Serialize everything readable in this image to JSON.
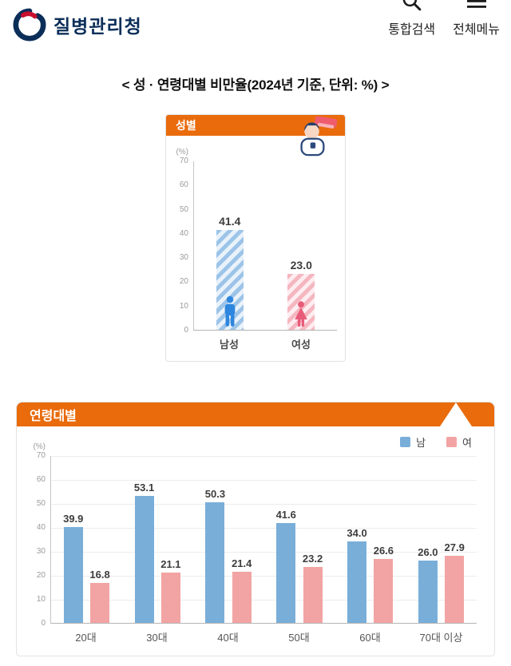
{
  "header": {
    "logo_text": "질병관리청",
    "search_label": "통합검색",
    "menu_label": "전체메뉴"
  },
  "title": "< 성 · 연령대별 비만율(2024년 기준, 단위: %) >",
  "theme": {
    "accent_color": "#E96B0C"
  },
  "chart_data": [
    {
      "type": "bar",
      "title": "성별",
      "unit": "(%)",
      "categories": [
        "남성",
        "여성"
      ],
      "values": [
        41.4,
        23.0
      ],
      "ylim": [
        0,
        70
      ],
      "yticks": [
        0,
        10,
        20,
        30,
        40,
        50,
        60,
        70
      ],
      "bar_styles": [
        "striped-blue",
        "striped-pink"
      ],
      "icons": [
        "male",
        "female"
      ],
      "grid": false,
      "legend_position": "none"
    },
    {
      "type": "bar",
      "title": "연령대별",
      "unit": "(%)",
      "categories": [
        "20대",
        "30대",
        "40대",
        "50대",
        "60대",
        "70대 이상"
      ],
      "series": [
        {
          "name": "남",
          "color": "#79AED9",
          "values": [
            39.9,
            53.1,
            50.3,
            41.6,
            34.0,
            26.0
          ]
        },
        {
          "name": "여",
          "color": "#F2A3A3",
          "values": [
            16.8,
            21.1,
            21.4,
            23.2,
            26.6,
            27.9
          ]
        }
      ],
      "ylim": [
        0,
        70
      ],
      "yticks": [
        0,
        10,
        20,
        30,
        40,
        50,
        60,
        70
      ],
      "grid": true,
      "legend_position": "top-right"
    }
  ]
}
